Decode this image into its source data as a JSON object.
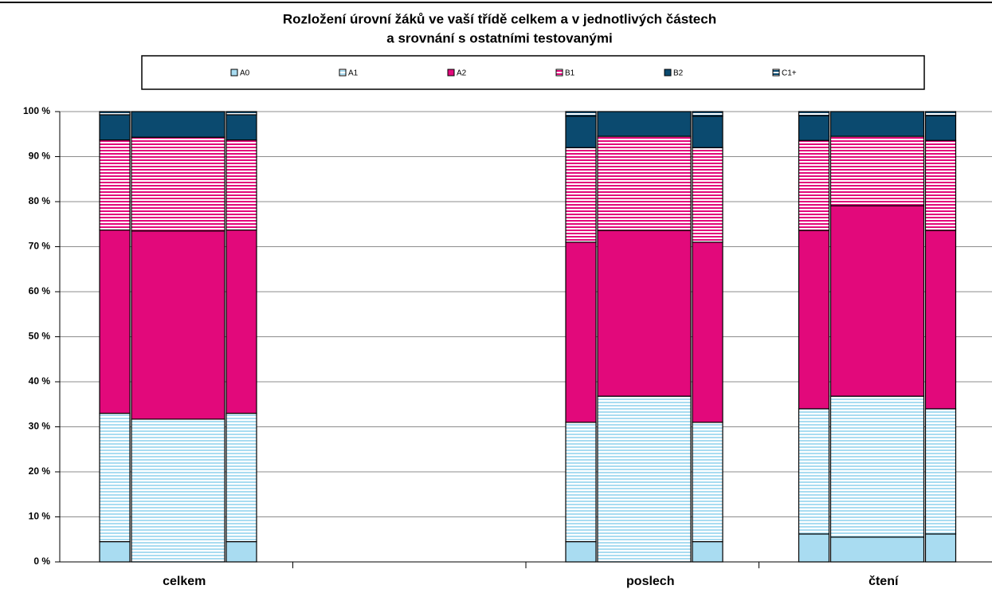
{
  "chart_data": {
    "type": "stacked_bar",
    "title": [
      "Rozložení úrovní žáků ve vaší třídě celkem a v jednotlivých částech",
      "a srovnání s ostatními testovanými"
    ],
    "categories": [
      "celkem",
      null,
      "poslech",
      "čtení"
    ],
    "series": [
      {
        "name": "A0",
        "color": "#a9dcf1",
        "striped": false,
        "values": [
          [
            4.5,
            0,
            4.5
          ],
          null,
          [
            4.5,
            0,
            4.5
          ],
          [
            6.2,
            5.5,
            6.2
          ]
        ]
      },
      {
        "name": "A1",
        "color": "#a9dcf1",
        "striped": true,
        "values": [
          [
            28.5,
            31.7,
            28.5
          ],
          null,
          [
            26.5,
            36.8,
            26.5
          ],
          [
            27.8,
            31.3,
            27.8
          ]
        ]
      },
      {
        "name": "A2",
        "color": "#e2097b",
        "striped": false,
        "values": [
          [
            40.7,
            41.8,
            40.7
          ],
          null,
          [
            40,
            36.8,
            40
          ],
          [
            39.6,
            42.3,
            39.6
          ]
        ]
      },
      {
        "name": "B1",
        "color": "#e2097b",
        "striped": true,
        "values": [
          [
            20,
            20.8,
            20
          ],
          null,
          [
            21,
            20.9,
            21
          ],
          [
            20,
            15.4,
            20
          ]
        ]
      },
      {
        "name": "B2",
        "color": "#0b4a6f",
        "striped": false,
        "values": [
          [
            5.6,
            5.7,
            5.6
          ],
          null,
          [
            7,
            5.5,
            7
          ],
          [
            5.5,
            5.5,
            5.5
          ]
        ]
      },
      {
        "name": "C1+",
        "color": "#0b4a6f",
        "striped": true,
        "values": [
          [
            0.7,
            0,
            0.7
          ],
          null,
          [
            1,
            0,
            1
          ],
          [
            0.9,
            0,
            0.9
          ]
        ]
      }
    ],
    "ylim": [
      0,
      100
    ],
    "yticks": [
      {
        "value": 0,
        "label": "0 %"
      },
      {
        "value": 10,
        "label": "10 %"
      },
      {
        "value": 20,
        "label": "20 %"
      },
      {
        "value": 30,
        "label": "30 %"
      },
      {
        "value": 40,
        "label": "40 %"
      },
      {
        "value": 50,
        "label": "50 %"
      },
      {
        "value": 60,
        "label": "60 %"
      },
      {
        "value": 70,
        "label": "70 %"
      },
      {
        "value": 80,
        "label": "80 %"
      },
      {
        "value": 90,
        "label": "90 %"
      },
      {
        "value": 100,
        "label": "100 %"
      }
    ],
    "grid": true
  }
}
